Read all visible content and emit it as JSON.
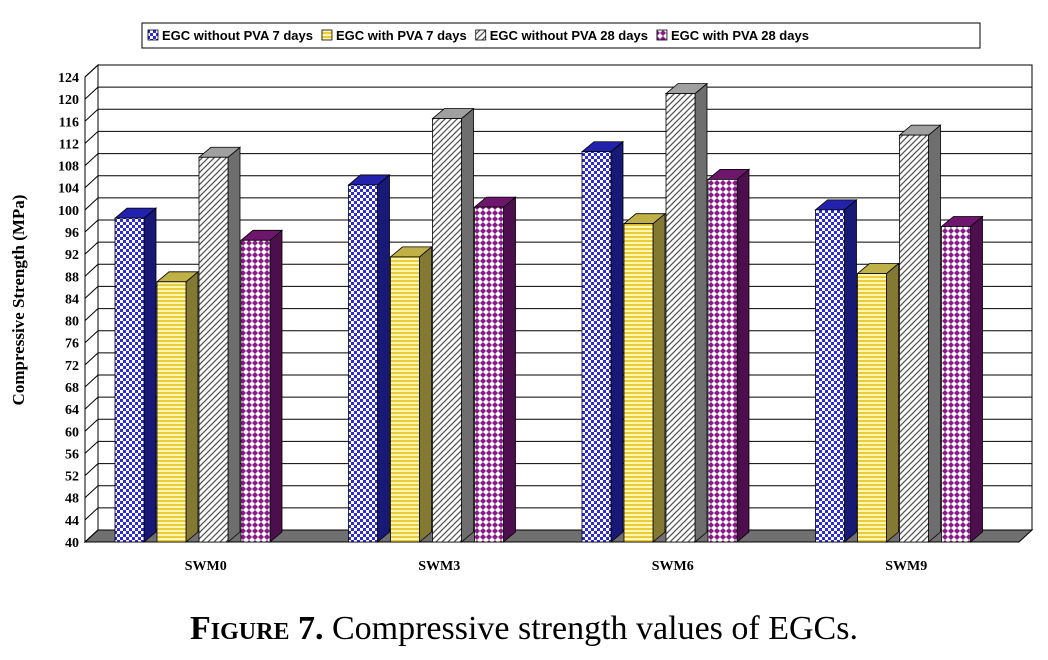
{
  "chart_data": {
    "type": "bar",
    "categories": [
      "SWM0",
      "SWM3",
      "SWM6",
      "SWM9"
    ],
    "series": [
      {
        "name": "EGC without PVA 7 days",
        "values": [
          98.5,
          104.5,
          110.5,
          100
        ],
        "color": "#2b2bd8",
        "pattern": "checker"
      },
      {
        "name": "EGC with PVA 7 days",
        "values": [
          87,
          91.5,
          97.5,
          88.5
        ],
        "color": "#f0dc5a",
        "pattern": "hstripe"
      },
      {
        "name": "EGC without PVA 28 days",
        "values": [
          109.5,
          116.5,
          121,
          113.5
        ],
        "color": "#c8c8c8",
        "pattern": "diagonal"
      },
      {
        "name": "EGC with PVA 28 days",
        "values": [
          94.5,
          100.5,
          105.5,
          97
        ],
        "color": "#8a1a8a",
        "pattern": "diamond"
      }
    ],
    "ylabel": "Compressive Strength (MPa)",
    "xlabel": "",
    "ylim": [
      40,
      124
    ],
    "yticks": [
      40,
      44,
      48,
      52,
      56,
      60,
      64,
      68,
      72,
      76,
      80,
      84,
      88,
      92,
      96,
      100,
      104,
      108,
      112,
      116,
      120,
      124
    ],
    "grid": true,
    "legend": "top"
  },
  "caption": {
    "label": "Figure 7.",
    "text": " Compressive strength values of EGCs."
  }
}
